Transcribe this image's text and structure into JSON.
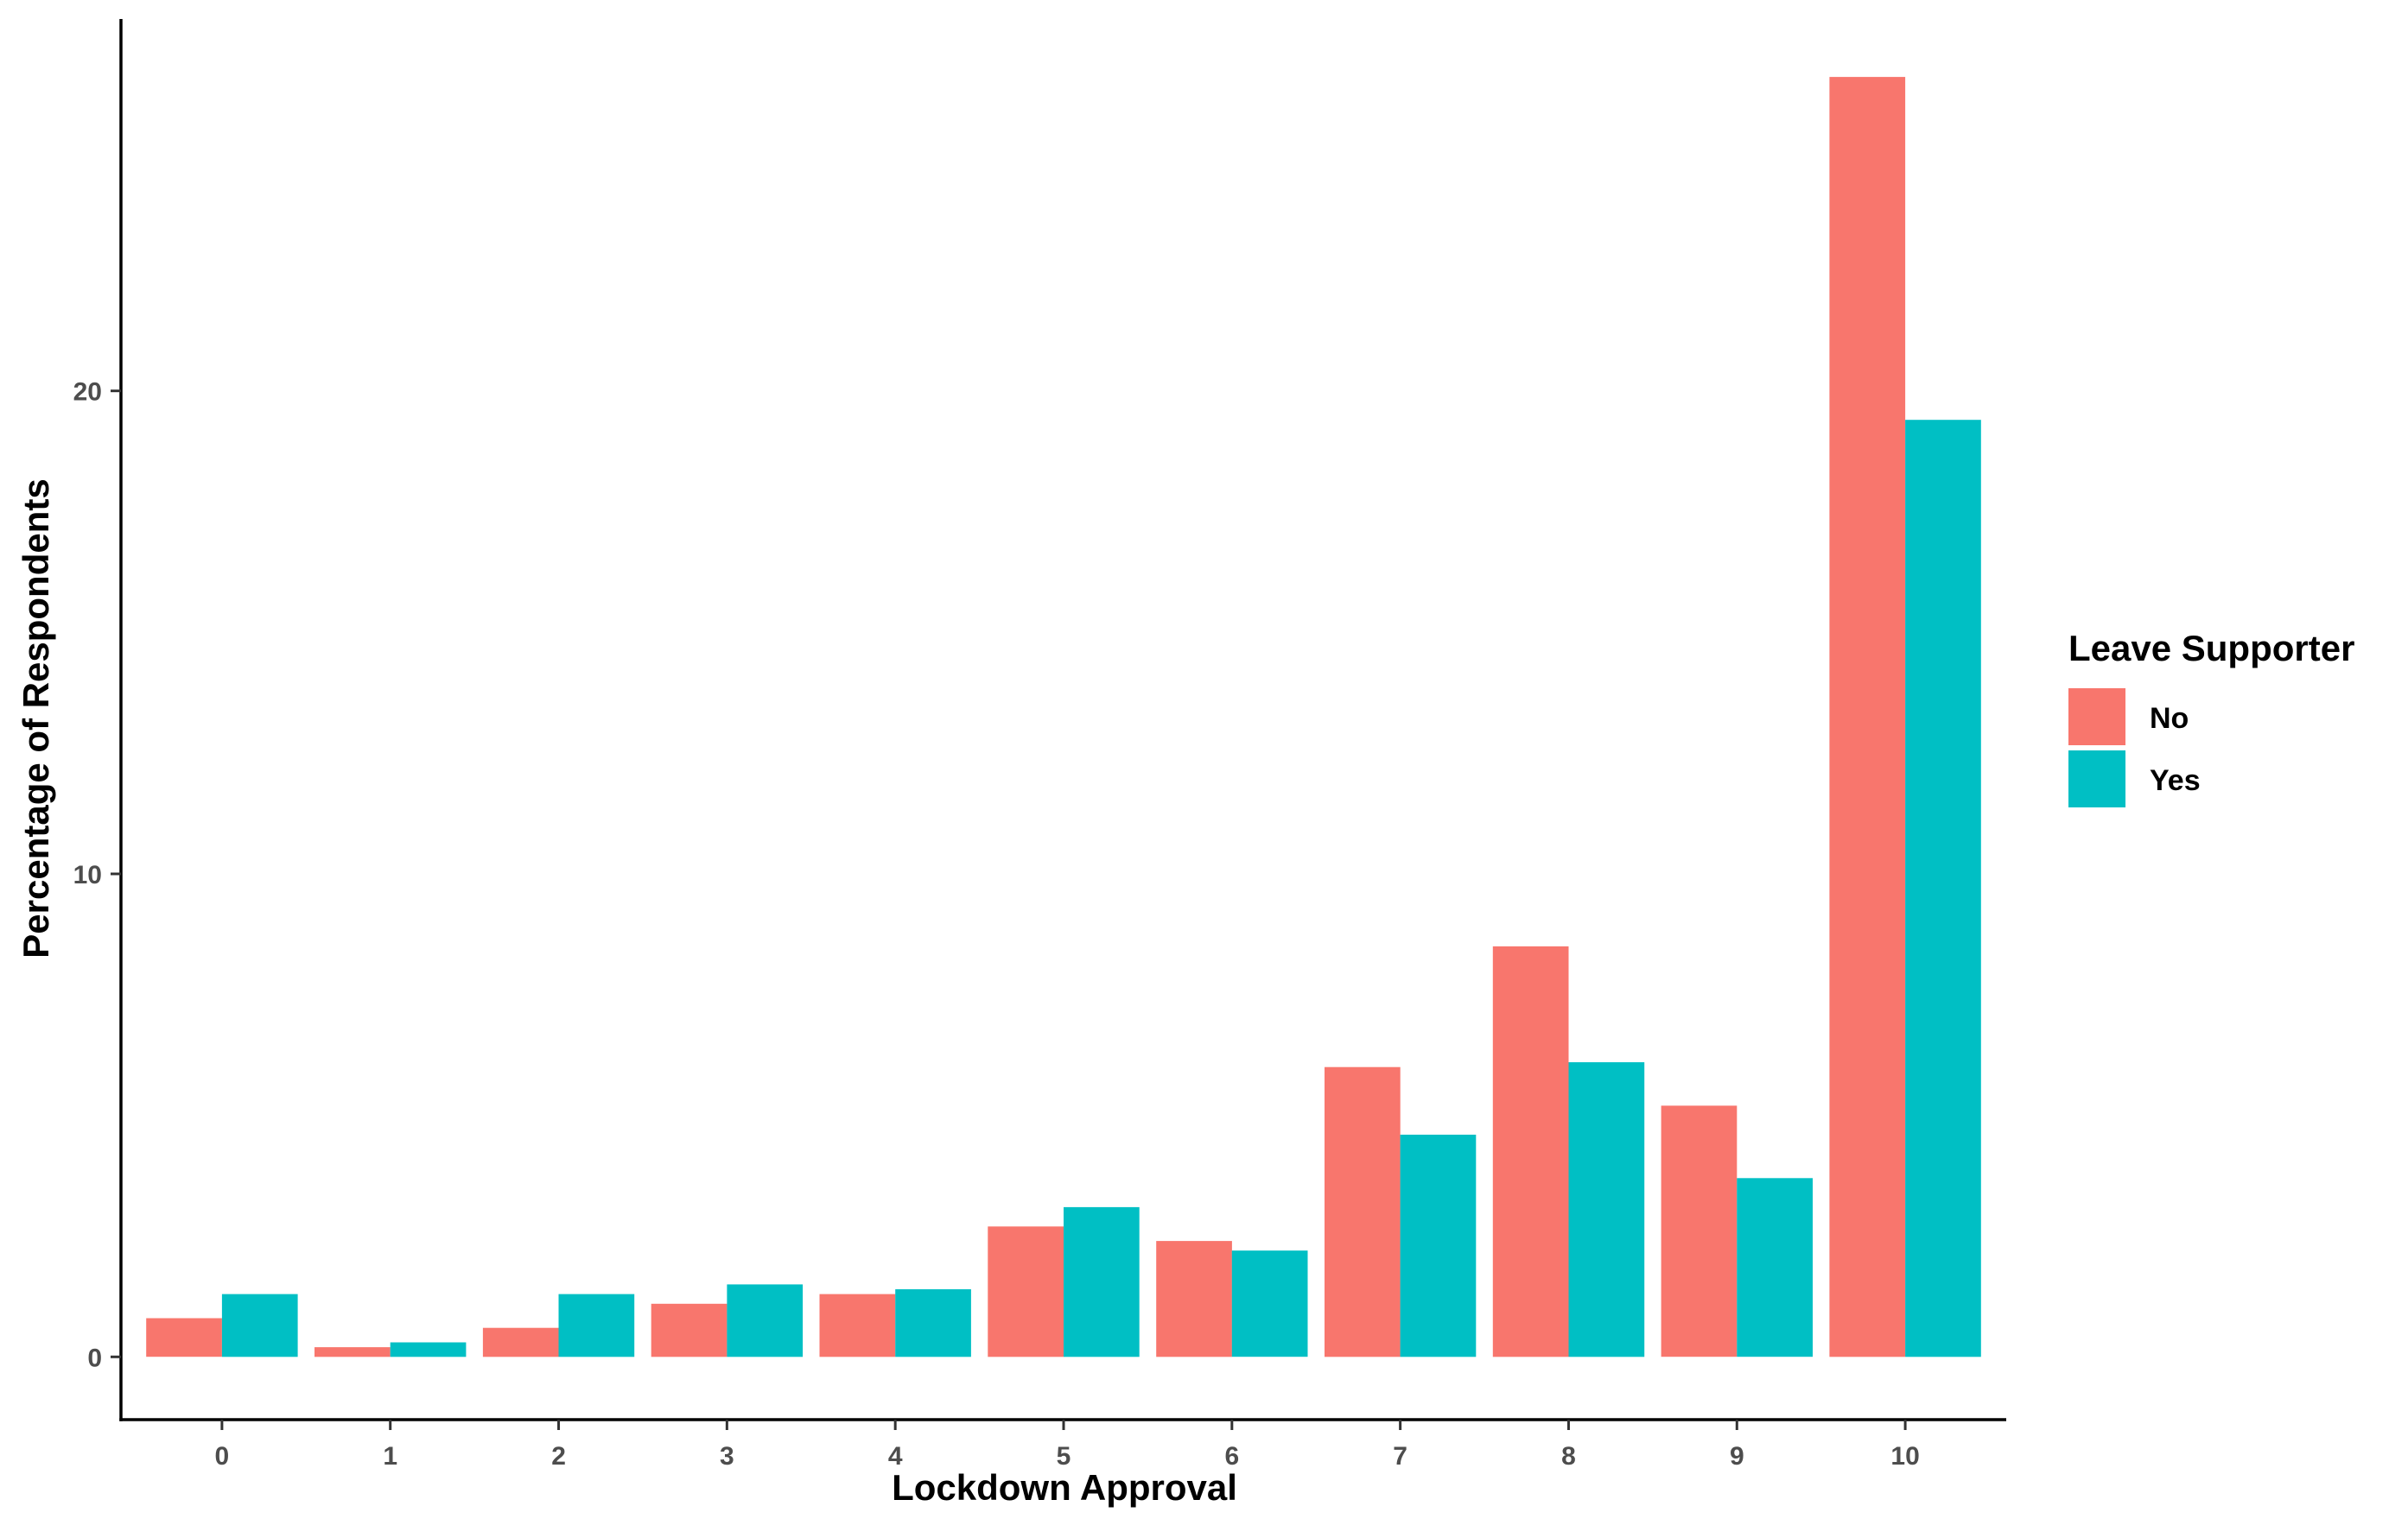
{
  "chart_data": {
    "type": "bar",
    "title": "",
    "xlabel": "Lockdown Approval",
    "ylabel": "Percentage of Respondents",
    "categories": [
      "0",
      "1",
      "2",
      "3",
      "4",
      "5",
      "6",
      "7",
      "8",
      "9",
      "10"
    ],
    "series": [
      {
        "name": "No",
        "color": "#F8766D",
        "values": [
          0.8,
          0.2,
          0.6,
          1.1,
          1.3,
          2.7,
          2.4,
          6.0,
          8.5,
          5.2,
          26.5
        ]
      },
      {
        "name": "Yes",
        "color": "#00BFC4",
        "values": [
          1.3,
          0.3,
          1.3,
          1.5,
          1.4,
          3.1,
          2.2,
          4.6,
          6.1,
          3.7,
          19.4
        ]
      }
    ],
    "ylim": [
      -1.3,
      27.7
    ],
    "yticks": [
      "0",
      "10",
      "20"
    ],
    "grid": false,
    "legend": {
      "title": "Leave Supporter",
      "placement": "right",
      "entries": [
        "No",
        "Yes"
      ]
    }
  }
}
